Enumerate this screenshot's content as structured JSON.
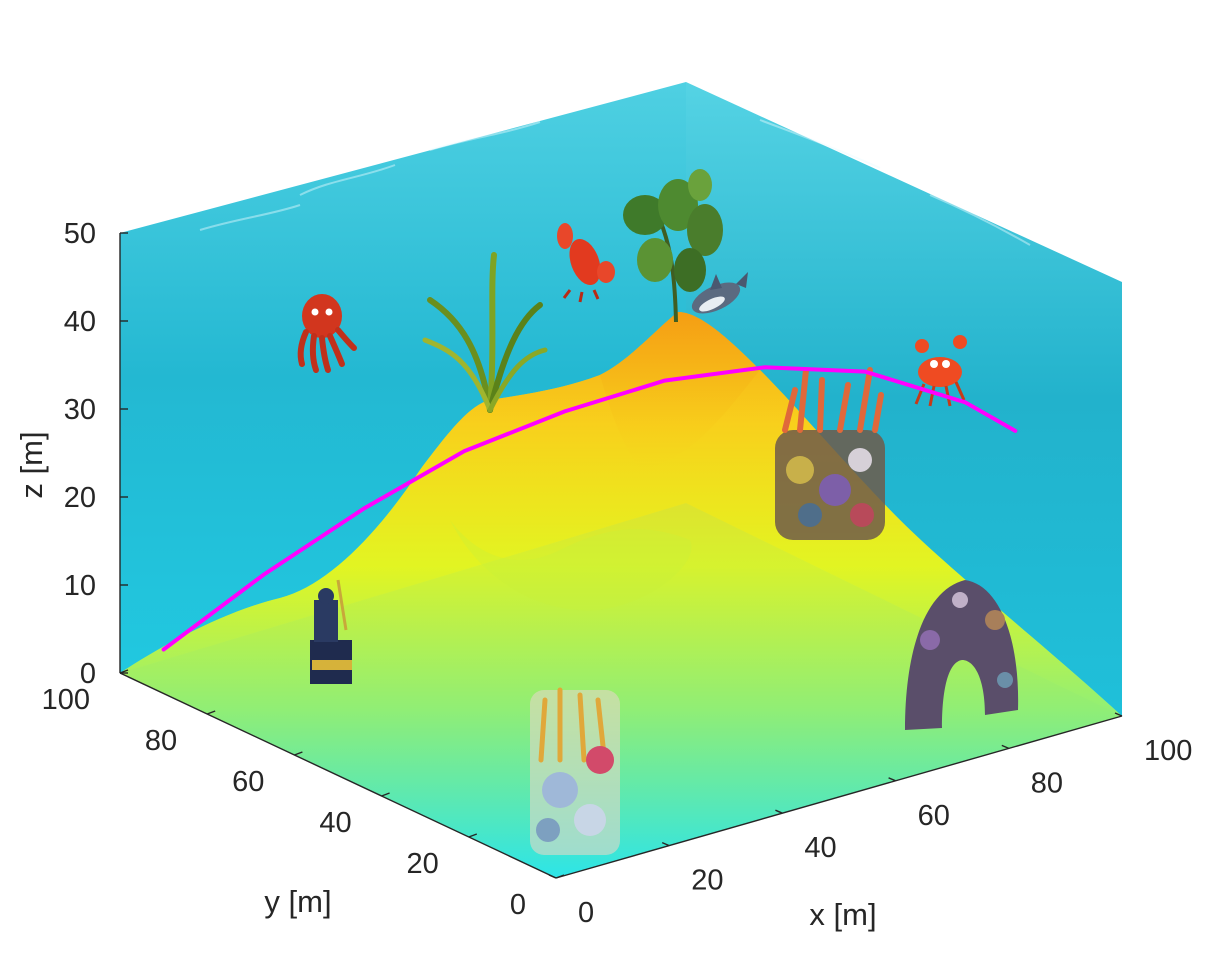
{
  "chart_data": {
    "type": "surface3d",
    "title": "",
    "xlabel": "x [m]",
    "ylabel": "y [m]",
    "zlabel": "z [m]",
    "xlim": [
      0,
      100
    ],
    "ylim": [
      0,
      100
    ],
    "zlim": [
      0,
      50
    ],
    "x_ticks": [
      "0",
      "20",
      "40",
      "60",
      "80",
      "100"
    ],
    "y_ticks": [
      "0",
      "20",
      "40",
      "60",
      "80",
      "100"
    ],
    "z_ticks": [
      "0",
      "10",
      "20",
      "30",
      "40",
      "50"
    ],
    "colormap": "parula",
    "grid": false,
    "legend": "none",
    "trajectory": {
      "color": "#ff00ff",
      "points": [
        [
          0,
          90,
          5
        ],
        [
          10,
          80,
          14
        ],
        [
          20,
          70,
          22
        ],
        [
          30,
          60,
          29
        ],
        [
          40,
          50,
          34
        ],
        [
          50,
          40,
          38
        ],
        [
          60,
          30,
          40
        ],
        [
          70,
          20,
          40
        ],
        [
          80,
          10,
          37
        ],
        [
          85,
          5,
          34
        ]
      ]
    },
    "colors": {
      "water_top": "#3ec8dc",
      "water_bottom": "#1fd6ee",
      "terrain_low": "#2ee6e8",
      "terrain_mid": "#e6f51e",
      "terrain_high": "#f5a615",
      "trajectory": "#ff00ff"
    },
    "markers": [
      {
        "name": "octopus",
        "icon": "octopus-icon"
      },
      {
        "name": "seaweed",
        "icon": "seaweed-icon"
      },
      {
        "name": "lobster",
        "icon": "lobster-icon"
      },
      {
        "name": "green plant",
        "icon": "plant-icon"
      },
      {
        "name": "shark",
        "icon": "shark-icon"
      },
      {
        "name": "crab",
        "icon": "crab-icon"
      },
      {
        "name": "coral cluster",
        "icon": "coral-icon"
      },
      {
        "name": "rock arch coral",
        "icon": "rock-arch-icon"
      },
      {
        "name": "coral bottom",
        "icon": "coral-bottom-icon"
      },
      {
        "name": "triton statue",
        "icon": "triton-icon"
      }
    ]
  }
}
